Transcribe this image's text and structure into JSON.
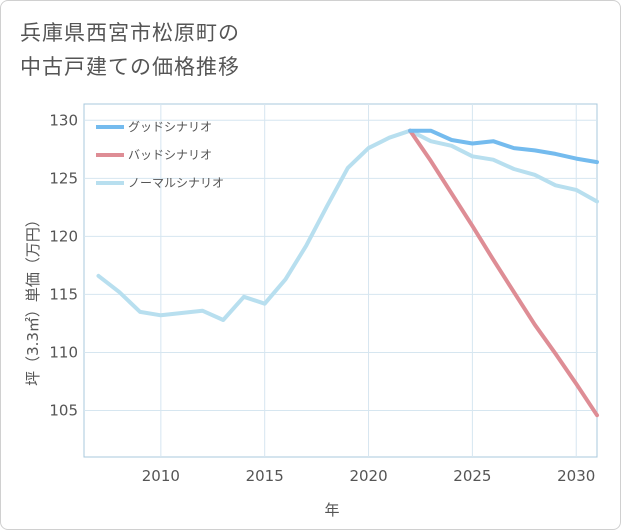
{
  "title": {
    "line1": "兵庫県西宮市松原町の",
    "line2": "中古戸建ての価格推移"
  },
  "chart_data": {
    "type": "line",
    "title": "兵庫県西宮市松原町の中古戸建ての価格推移",
    "xlabel": "年",
    "ylabel": "坪（3.3㎡）単価（万円）",
    "xlim": [
      2006.3,
      2031
    ],
    "ylim": [
      101,
      131.4
    ],
    "xticks": [
      2010,
      2015,
      2020,
      2025,
      2030
    ],
    "yticks": [
      105,
      110,
      115,
      120,
      125,
      130
    ],
    "grid": true,
    "legend_position": "top-left",
    "series": [
      {
        "name": "グッドシナリオ",
        "color": "#74bbee",
        "x": [
          2022,
          2023,
          2024,
          2025,
          2026,
          2027,
          2028,
          2029,
          2030,
          2031
        ],
        "y": [
          129.1,
          129.1,
          128.3,
          128.0,
          128.2,
          127.6,
          127.4,
          127.1,
          126.7,
          126.4
        ]
      },
      {
        "name": "バッドシナリオ",
        "color": "#de8d95",
        "x": [
          2022,
          2023,
          2024,
          2025,
          2026,
          2027,
          2028,
          2029,
          2030,
          2031
        ],
        "y": [
          129.1,
          126.5,
          123.7,
          120.9,
          118.0,
          115.2,
          112.4,
          109.9,
          107.3,
          104.6
        ]
      },
      {
        "name": "ノーマルシナリオ",
        "color": "#b8dfef",
        "x": [
          2007,
          2008,
          2009,
          2010,
          2011,
          2012,
          2013,
          2014,
          2015,
          2016,
          2017,
          2018,
          2019,
          2020,
          2021,
          2022,
          2023,
          2024,
          2025,
          2026,
          2027,
          2028,
          2029,
          2030,
          2031
        ],
        "y": [
          116.6,
          115.2,
          113.5,
          113.2,
          113.4,
          113.6,
          112.8,
          114.8,
          114.2,
          116.3,
          119.2,
          122.6,
          125.9,
          127.6,
          128.5,
          129.1,
          128.2,
          127.8,
          126.9,
          126.6,
          125.8,
          125.3,
          124.4,
          124.0,
          123.0
        ]
      }
    ]
  }
}
